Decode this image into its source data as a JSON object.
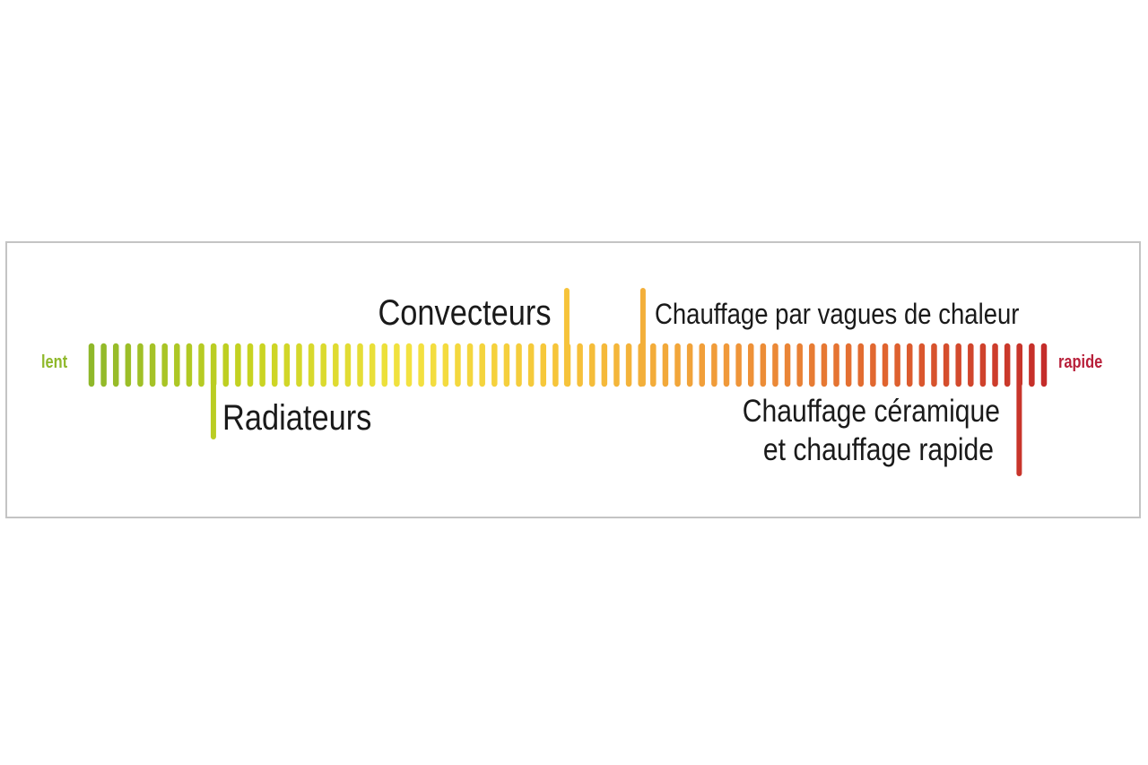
{
  "scale": {
    "start_label": "lent",
    "end_label": "rapide",
    "start_color": "#8fb82a",
    "end_color": "#b8203a",
    "tick_count": 79,
    "gradient_stops": [
      "#8fb82a",
      "#c7d321",
      "#f3e240",
      "#f6c33a",
      "#f0993a",
      "#e0642f",
      "#c42c2a"
    ]
  },
  "markers": [
    {
      "id": "radiateurs",
      "label": "Radiateurs",
      "position": 0.128,
      "direction": "down"
    },
    {
      "id": "convecteurs",
      "label": "Convecteurs",
      "position": 0.499,
      "direction": "up"
    },
    {
      "id": "vagues",
      "label": "Chauffage par vagues de chaleur",
      "position": 0.579,
      "direction": "up"
    },
    {
      "id": "ceramique",
      "label_lines": [
        "Chauffage céramique",
        "et chauffage rapide"
      ],
      "position": 0.974,
      "direction": "down"
    }
  ]
}
